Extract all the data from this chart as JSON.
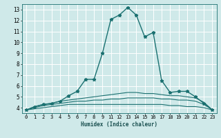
{
  "xlabel": "Humidex (Indice chaleur)",
  "bg_color": "#cfe9e9",
  "grid_color": "#ffffff",
  "line_color": "#1a7070",
  "x_labels": [
    "0",
    "1",
    "2",
    "3",
    "4",
    "5",
    "6",
    "7",
    "8",
    "9",
    "11",
    "12",
    "13",
    "14",
    "15",
    "16",
    "17",
    "18",
    "19",
    "20",
    "21",
    "22",
    "23"
  ],
  "ylim": [
    3.5,
    13.5
  ],
  "y_ticks": [
    4,
    5,
    6,
    7,
    8,
    9,
    10,
    11,
    12,
    13
  ],
  "series": [
    {
      "y": [
        3.8,
        4.1,
        4.3,
        4.4,
        4.6,
        5.1,
        5.5,
        6.6,
        6.6,
        9.0,
        12.1,
        12.5,
        13.2,
        12.5,
        10.5,
        10.9,
        6.5,
        5.4,
        5.5,
        5.5,
        5.0,
        4.4,
        3.8
      ],
      "marker": "*",
      "lw": 1.0,
      "ms": 3.5
    },
    {
      "y": [
        3.8,
        4.1,
        4.3,
        4.4,
        4.6,
        4.7,
        4.8,
        4.9,
        5.0,
        5.1,
        5.2,
        5.3,
        5.4,
        5.4,
        5.3,
        5.3,
        5.2,
        5.1,
        5.1,
        5.0,
        4.9,
        4.5,
        3.8
      ],
      "marker": null,
      "lw": 0.8,
      "ms": 0
    },
    {
      "y": [
        3.8,
        4.0,
        4.2,
        4.3,
        4.4,
        4.5,
        4.6,
        4.6,
        4.7,
        4.7,
        4.8,
        4.8,
        4.9,
        4.9,
        4.9,
        4.9,
        4.8,
        4.8,
        4.7,
        4.7,
        4.6,
        4.3,
        3.8
      ],
      "marker": null,
      "lw": 0.8,
      "ms": 0
    },
    {
      "y": [
        3.8,
        3.9,
        4.0,
        4.1,
        4.2,
        4.3,
        4.3,
        4.3,
        4.3,
        4.3,
        4.3,
        4.3,
        4.3,
        4.3,
        4.3,
        4.3,
        4.3,
        4.2,
        4.2,
        4.1,
        4.1,
        4.0,
        3.8
      ],
      "marker": null,
      "lw": 0.8,
      "ms": 0
    }
  ]
}
